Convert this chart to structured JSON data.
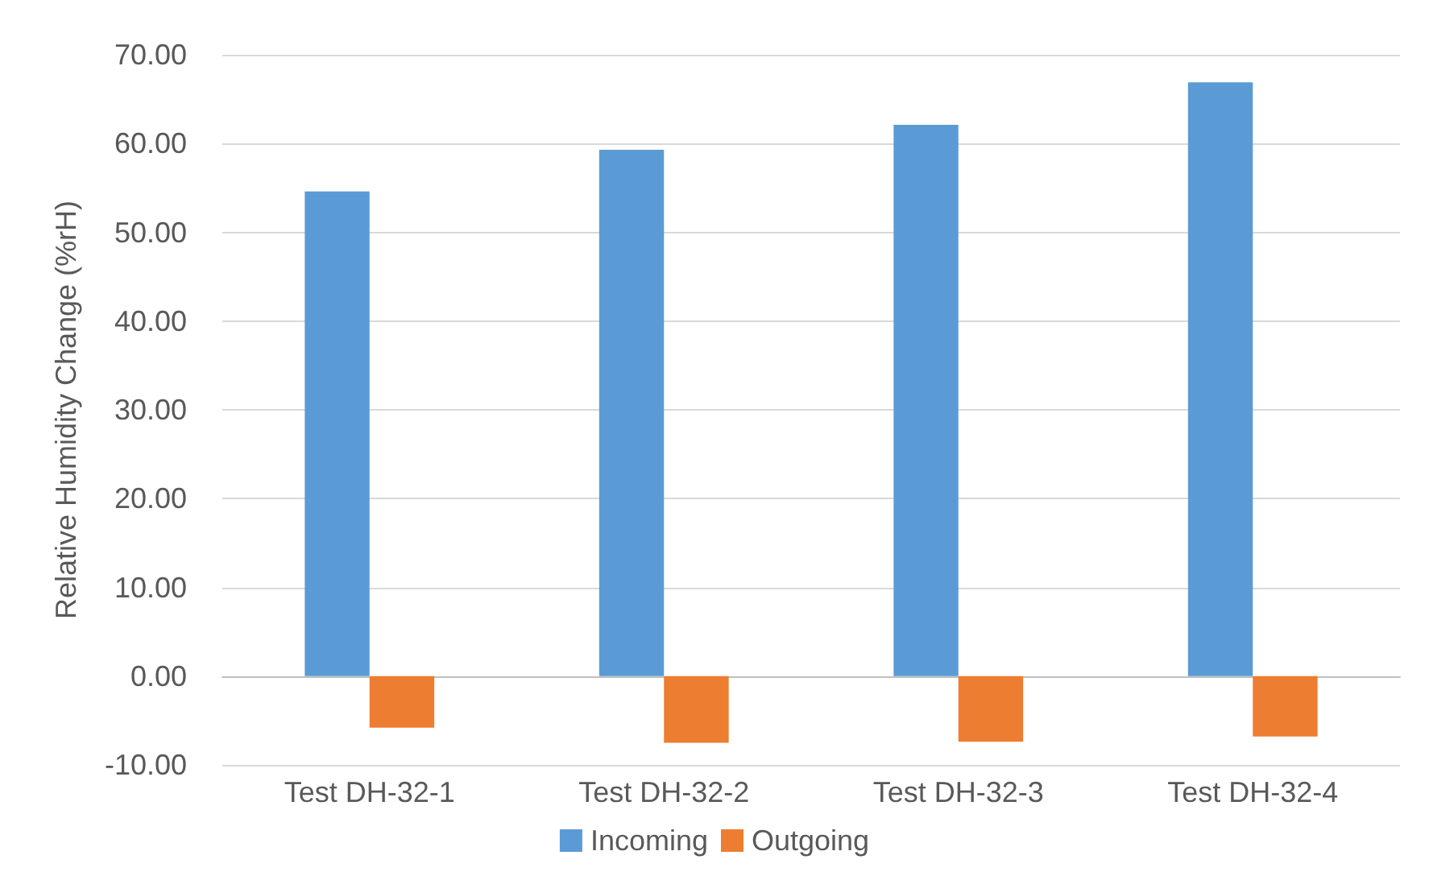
{
  "chart_data": {
    "type": "bar",
    "ylabel": "Relative Humidity Change (%rH)",
    "categories": [
      "Test DH-32-1",
      "Test DH-32-2",
      "Test DH-32-3",
      "Test DH-32-4"
    ],
    "series": [
      {
        "name": "Incoming",
        "color": "#5b9bd5",
        "values": [
          54.6,
          59.3,
          62.1,
          66.9
        ]
      },
      {
        "name": "Outgoing",
        "color": "#ed7d31",
        "values": [
          -5.8,
          -7.5,
          -7.4,
          -6.8
        ]
      }
    ],
    "ylim": [
      -10,
      70
    ],
    "yticks": [
      {
        "value": -10,
        "label": "-10.00"
      },
      {
        "value": 0,
        "label": "0.00"
      },
      {
        "value": 10,
        "label": "10.00"
      },
      {
        "value": 20,
        "label": "20.00"
      },
      {
        "value": 30,
        "label": "30.00"
      },
      {
        "value": 40,
        "label": "40.00"
      },
      {
        "value": 50,
        "label": "50.00"
      },
      {
        "value": 60,
        "label": "60.00"
      },
      {
        "value": 70,
        "label": "70.00"
      }
    ],
    "grid": true,
    "legend": "bottom"
  }
}
